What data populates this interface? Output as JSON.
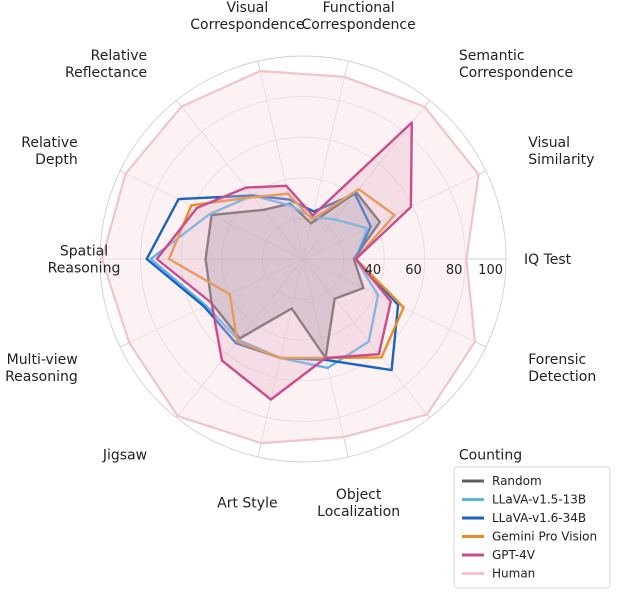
{
  "chart_data": {
    "type": "radar",
    "axes": [
      "IQ Test",
      "Visual Similarity",
      "Semantic Correspondence",
      "Functional Correspondence",
      "Visual Correspondence",
      "Relative Reflectance",
      "Relative Depth",
      "Spatial Reasoning",
      "Multi-view Reasoning",
      "Jigsaw",
      "Art Style",
      "Object Localization",
      "Counting",
      "Forensic Detection"
    ],
    "axis_label_lines": [
      [
        "IQ Test"
      ],
      [
        "Visual",
        "Similarity"
      ],
      [
        "Semantic",
        "Correspondence"
      ],
      [
        "Functional",
        "Correspondence"
      ],
      [
        "Visual",
        "Correspondence"
      ],
      [
        "Relative",
        "Reflectance"
      ],
      [
        "Relative",
        "Depth"
      ],
      [
        "Spatial",
        "Reasoning"
      ],
      [
        "Multi-view",
        "Reasoning"
      ],
      [
        "Jigsaw"
      ],
      [
        "Art Style"
      ],
      [
        "Object",
        "Localization"
      ],
      [
        "Counting"
      ],
      [
        "Forensic",
        "Detection"
      ]
    ],
    "r_range": [
      0,
      100
    ],
    "r_ticks": [
      40,
      60,
      80,
      100
    ],
    "r_tick_labels": [
      "40",
      "60",
      "80",
      "100"
    ],
    "grid_rings": [
      20,
      40,
      60,
      80,
      100
    ],
    "series": [
      {
        "name": "Human",
        "color": "#f2c4c8",
        "fill": "#fbe8ea",
        "values": [
          80.5,
          96,
          96,
          92,
          95,
          96,
          97,
          99,
          95,
          99,
          93,
          90,
          98,
          94
        ]
      },
      {
        "name": "Random",
        "color": "#606060",
        "fill": "#7a7a8a",
        "values": [
          25,
          42,
          42,
          18,
          28,
          31,
          50,
          48,
          50,
          50,
          25,
          50,
          25,
          33
        ]
      },
      {
        "name": "LLaVA-v1.5-13B",
        "color": "#5cb3ec",
        "fill": "none",
        "values": [
          26,
          35,
          25,
          21,
          27,
          40,
          51,
          75,
          53,
          51,
          50,
          55,
          52,
          41
        ]
      },
      {
        "name": "LLaVA-v1.6-34B",
        "color": "#1a63c1",
        "fill": "none",
        "values": [
          26,
          37,
          41,
          24,
          30,
          40,
          68,
          77,
          54,
          53,
          50,
          51,
          70,
          52
        ]
      },
      {
        "name": "Gemini Pro Vision",
        "color": "#e88d22",
        "fill": "none",
        "values": [
          26,
          50,
          44,
          20,
          33,
          39,
          61,
          66,
          40,
          52,
          50,
          50,
          62,
          55
        ]
      },
      {
        "name": "GPT-4V",
        "color": "#cc4b8d",
        "fill": "#e2b6cb",
        "values": [
          26,
          59,
          86,
          22,
          37,
          45,
          58,
          72,
          50,
          64,
          71,
          50,
          60,
          48
        ]
      }
    ],
    "legend": {
      "position": "bottom-right",
      "entries": [
        "Random",
        "LLaVA-v1.5-13B",
        "LLaVA-v1.6-34B",
        "Gemini Pro Vision",
        "GPT-4V",
        "Human"
      ]
    },
    "title": ""
  }
}
